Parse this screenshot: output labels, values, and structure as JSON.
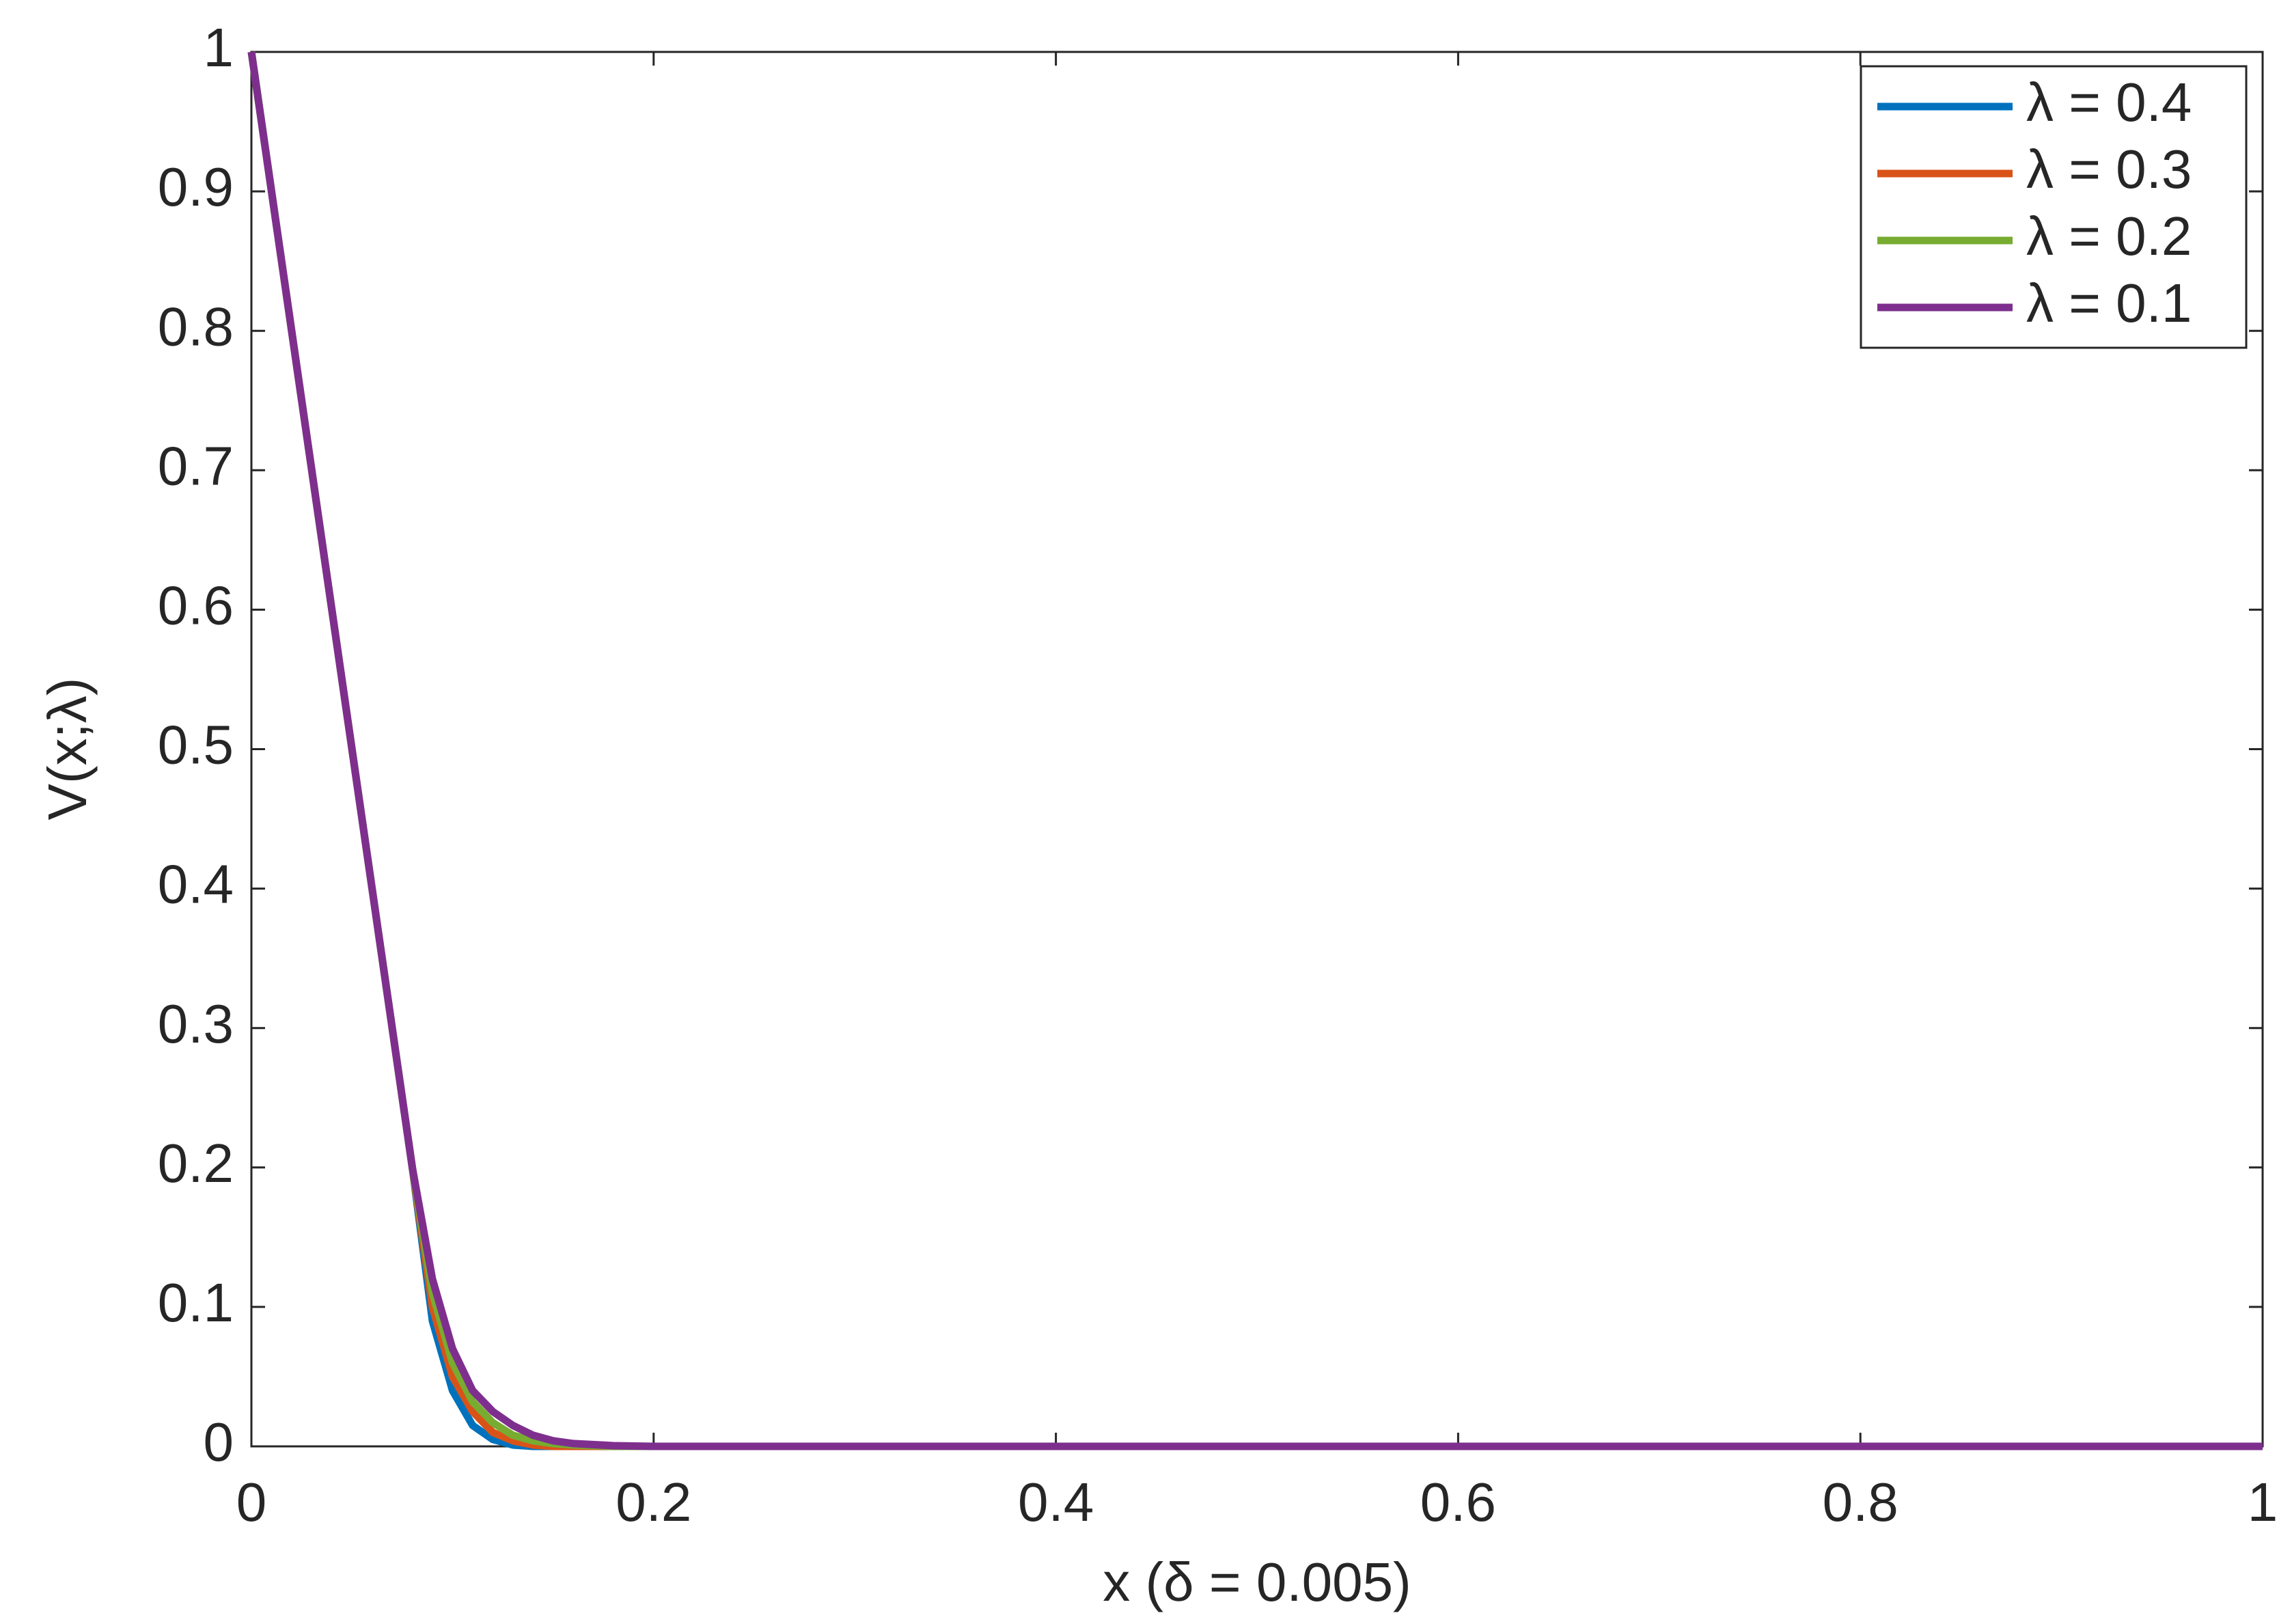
{
  "chart_data": {
    "type": "line",
    "xlabel": "x (δ = 0.005)",
    "ylabel": "V(x;λ)",
    "x": [
      0,
      0.02,
      0.04,
      0.06,
      0.08,
      0.09,
      0.1,
      0.11,
      0.12,
      0.13,
      0.14,
      0.15,
      0.16,
      0.18,
      0.2,
      0.3,
      0.5,
      0.7,
      1
    ],
    "series": [
      {
        "name": "λ = 0.4",
        "color": "#0072bd",
        "values": [
          1,
          0.8,
          0.6,
          0.4,
          0.2,
          0.09,
          0.04,
          0.015,
          0.005,
          0.001,
          0,
          0,
          0,
          0,
          0,
          0,
          0,
          0,
          0
        ]
      },
      {
        "name": "λ = 0.3",
        "color": "#d95319",
        "values": [
          1,
          0.8,
          0.6,
          0.4,
          0.2,
          0.1,
          0.05,
          0.025,
          0.01,
          0.004,
          0.001,
          0,
          0,
          0,
          0,
          0,
          0,
          0,
          0
        ]
      },
      {
        "name": "λ = 0.2",
        "color": "#77ac30",
        "values": [
          1,
          0.8,
          0.6,
          0.4,
          0.2,
          0.11,
          0.06,
          0.032,
          0.017,
          0.008,
          0.004,
          0.002,
          0.001,
          0,
          0,
          0,
          0,
          0,
          0
        ]
      },
      {
        "name": "λ = 0.1",
        "color": "#7e2f8e",
        "values": [
          1,
          0.8,
          0.6,
          0.4,
          0.2,
          0.12,
          0.07,
          0.04,
          0.025,
          0.015,
          0.008,
          0.004,
          0.002,
          0.0005,
          0,
          0,
          0,
          0,
          0
        ]
      }
    ],
    "xlim": [
      0,
      1
    ],
    "xticks": [
      0,
      0.2,
      0.4,
      0.6,
      0.8,
      1
    ],
    "ylim": [
      0,
      1
    ],
    "yticks": [
      0,
      0.1,
      0.2,
      0.3,
      0.4,
      0.5,
      0.6,
      0.7,
      0.8,
      0.9,
      1
    ],
    "grid": false,
    "legend_location": "upper right"
  }
}
